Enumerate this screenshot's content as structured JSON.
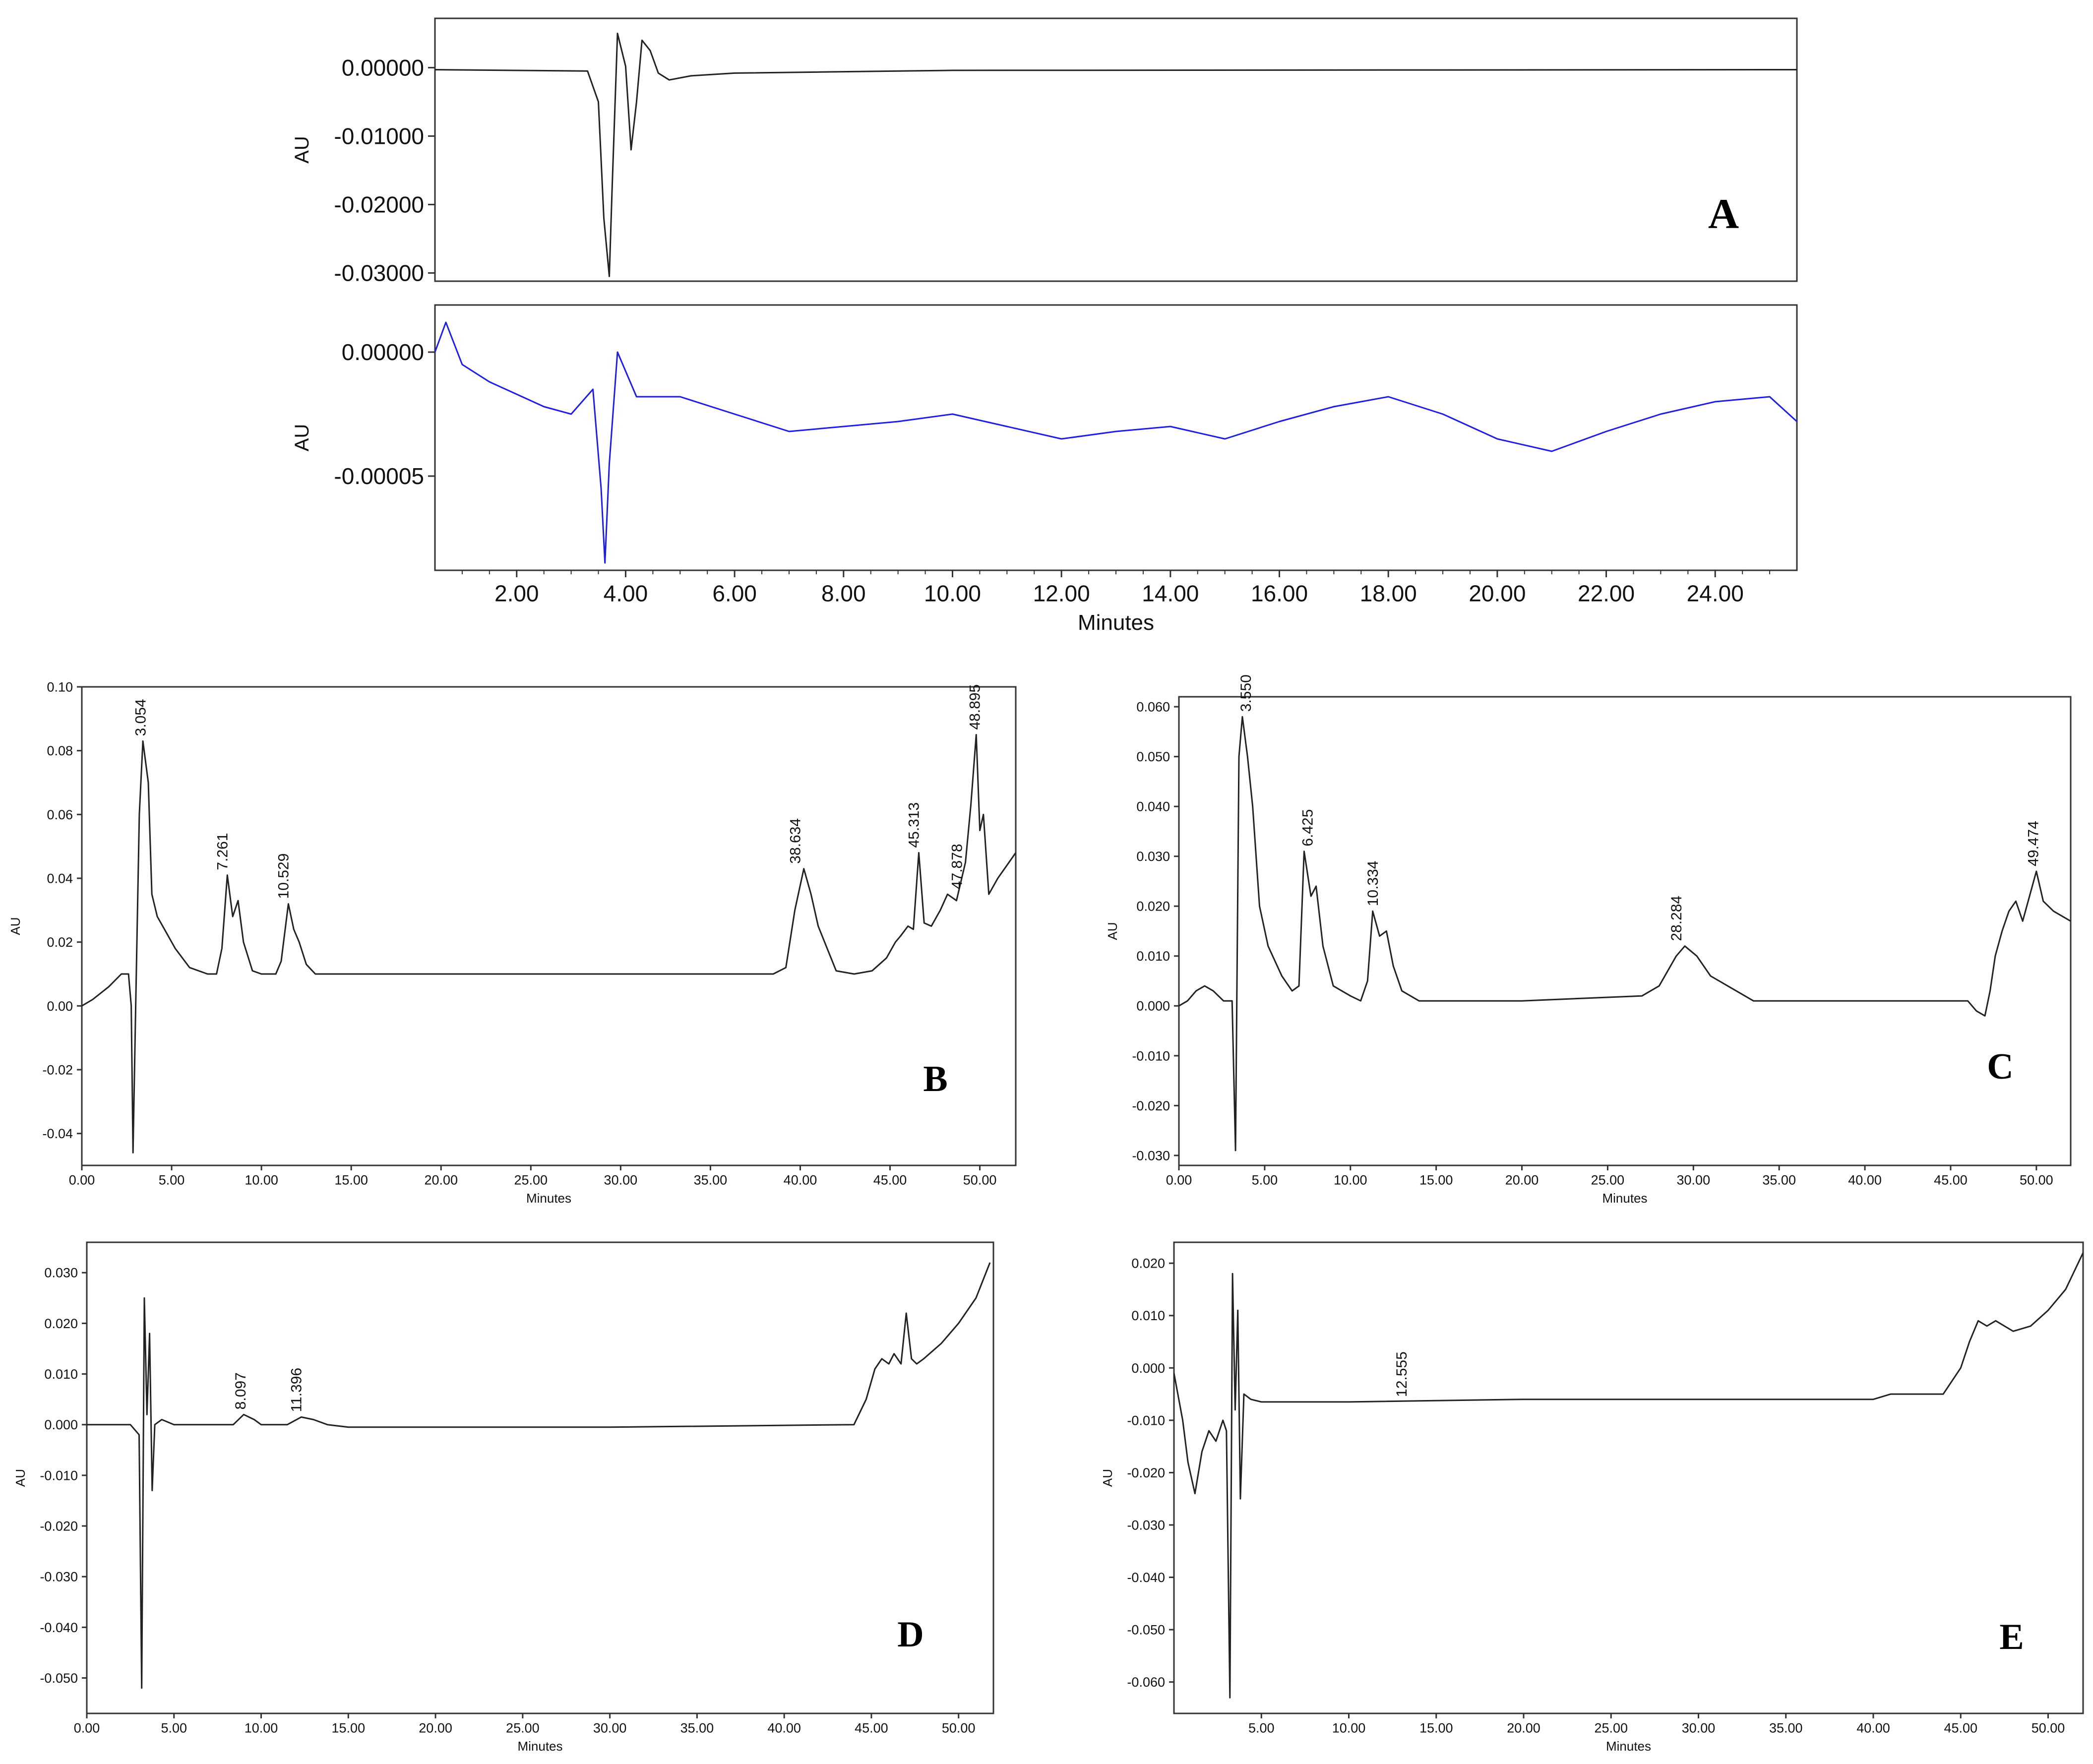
{
  "chart_data": [
    {
      "id": "A_top",
      "type": "line",
      "panel_label": "A",
      "xlabel": "",
      "ylabel": "AU",
      "xlim": [
        0.5,
        25.5
      ],
      "ylim": [
        -0.0312,
        0.0072
      ],
      "x_ticks": [],
      "x_tick_labels": [],
      "y_ticks": [
        0.0,
        -0.01,
        -0.02,
        -0.03
      ],
      "y_tick_labels": [
        "0.00000",
        "-0.01000",
        "-0.02000",
        "-0.03000"
      ],
      "color": "#222222",
      "series": [
        {
          "x": [
            0.5,
            3.3,
            3.5,
            3.6,
            3.7,
            3.75,
            3.85,
            4.0,
            4.1,
            4.2,
            4.3,
            4.45,
            4.6,
            4.8,
            5.2,
            6,
            10,
            25.5
          ],
          "y": [
            -0.0003,
            -0.0005,
            -0.005,
            -0.022,
            -0.0305,
            -0.018,
            0.005,
            0.0002,
            -0.012,
            -0.005,
            0.004,
            0.0025,
            -0.0008,
            -0.0018,
            -0.0012,
            -0.0008,
            -0.0004,
            -0.0003
          ]
        }
      ],
      "peak_labels": []
    },
    {
      "id": "A_bottom",
      "type": "line",
      "panel_label": "",
      "xlabel": "Minutes",
      "ylabel": "AU",
      "xlim": [
        0.5,
        25.5
      ],
      "ylim": [
        -8.8e-05,
        1.9e-05
      ],
      "x_ticks": [
        2,
        4,
        6,
        8,
        10,
        12,
        14,
        16,
        18,
        20,
        22,
        24
      ],
      "x_tick_labels": [
        "2.00",
        "4.00",
        "6.00",
        "8.00",
        "10.00",
        "12.00",
        "14.00",
        "16.00",
        "18.00",
        "20.00",
        "22.00",
        "24.00"
      ],
      "y_ticks": [
        0.0,
        -5e-05
      ],
      "y_tick_labels": [
        "0.00000",
        "-0.00005"
      ],
      "color": "#1f1fe0",
      "series": [
        {
          "x": [
            0.5,
            0.7,
            1,
            1.5,
            2,
            2.5,
            3,
            3.4,
            3.55,
            3.62,
            3.7,
            3.85,
            4.2,
            5,
            6,
            7,
            8,
            9,
            10,
            11,
            12,
            13,
            14,
            15,
            16,
            17,
            18,
            19,
            20,
            21,
            22,
            23,
            24,
            25,
            25.5
          ],
          "y": [
            0,
            1.2e-05,
            -5e-06,
            -1.2e-05,
            -1.7e-05,
            -2.2e-05,
            -2.5e-05,
            -1.5e-05,
            -5.5e-05,
            -8.5e-05,
            -4.5e-05,
            0,
            -1.8e-05,
            -1.8e-05,
            -2.5e-05,
            -3.2e-05,
            -3e-05,
            -2.8e-05,
            -2.5e-05,
            -3e-05,
            -3.5e-05,
            -3.2e-05,
            -3e-05,
            -3.5e-05,
            -2.8e-05,
            -2.2e-05,
            -1.8e-05,
            -2.5e-05,
            -3.5e-05,
            -4e-05,
            -3.2e-05,
            -2.5e-05,
            -2e-05,
            -1.8e-05,
            -2.8e-05
          ]
        }
      ],
      "peak_labels": []
    },
    {
      "id": "B",
      "type": "line",
      "panel_label": "B",
      "xlabel": "Minutes",
      "ylabel": "AU",
      "xlim": [
        0,
        52
      ],
      "ylim": [
        -0.05,
        0.1
      ],
      "x_ticks": [
        0,
        5,
        10,
        15,
        20,
        25,
        30,
        35,
        40,
        45,
        50
      ],
      "x_tick_labels": [
        "0.00",
        "5.00",
        "10.00",
        "15.00",
        "20.00",
        "25.00",
        "30.00",
        "35.00",
        "40.00",
        "45.00",
        "50.00"
      ],
      "y_ticks": [
        0.1,
        0.08,
        0.06,
        0.04,
        0.02,
        0.0,
        -0.02,
        -0.04
      ],
      "y_tick_labels": [
        "0.10",
        "0.08",
        "0.06",
        "0.04",
        "0.02",
        "0.00",
        "-0.02",
        "-0.04"
      ],
      "color": "#222222",
      "series": [
        {
          "x": [
            0,
            0.6,
            1.5,
            2.2,
            2.6,
            2.75,
            2.85,
            3.0,
            3.2,
            3.4,
            3.7,
            3.9,
            4.2,
            4.6,
            5.2,
            6,
            7,
            7.5,
            7.8,
            8.1,
            8.4,
            8.7,
            9,
            9.5,
            10,
            10.8,
            11.1,
            11.5,
            11.8,
            12.1,
            12.5,
            13,
            14,
            20,
            30,
            37,
            38.5,
            39.2,
            39.7,
            40.2,
            40.6,
            41,
            42,
            43,
            44,
            44.8,
            45.3,
            45.6,
            46.0,
            46.3,
            46.6,
            46.9,
            47.3,
            47.8,
            48.2,
            48.7,
            49.2,
            49.5,
            49.8,
            50.0,
            50.2,
            50.5,
            51,
            52
          ],
          "y": [
            0.0,
            0.002,
            0.006,
            0.01,
            0.01,
            0.0,
            -0.046,
            0.0,
            0.06,
            0.083,
            0.07,
            0.035,
            0.028,
            0.024,
            0.018,
            0.012,
            0.01,
            0.01,
            0.018,
            0.041,
            0.028,
            0.033,
            0.02,
            0.011,
            0.01,
            0.01,
            0.014,
            0.032,
            0.024,
            0.02,
            0.013,
            0.01,
            0.01,
            0.01,
            0.01,
            0.01,
            0.01,
            0.012,
            0.03,
            0.043,
            0.035,
            0.025,
            0.011,
            0.01,
            0.011,
            0.015,
            0.02,
            0.022,
            0.025,
            0.024,
            0.048,
            0.026,
            0.025,
            0.03,
            0.035,
            0.033,
            0.045,
            0.063,
            0.085,
            0.055,
            0.06,
            0.035,
            0.04,
            0.048
          ]
        }
      ],
      "peak_labels": [
        {
          "x": 3.054,
          "y": 0.083,
          "text": "3.054",
          "lx": 3.55
        },
        {
          "x": 7.261,
          "y": 0.041,
          "text": "7.261",
          "lx": 8.1
        },
        {
          "x": 10.529,
          "y": 0.032,
          "text": "10.529",
          "lx": 11.5
        },
        {
          "x": 38.634,
          "y": 0.043,
          "text": "38.634",
          "lx": 40.0
        },
        {
          "x": 45.313,
          "y": 0.048,
          "text": "45.313",
          "lx": 46.6
        },
        {
          "x": 47.878,
          "y": 0.035,
          "text": "47.878",
          "lx": 49.0
        },
        {
          "x": 48.895,
          "y": 0.085,
          "text": "48.895",
          "lx": 50.0
        }
      ]
    },
    {
      "id": "C",
      "type": "line",
      "panel_label": "C",
      "xlabel": "Minutes",
      "ylabel": "AU",
      "xlim": [
        0,
        52
      ],
      "ylim": [
        -0.032,
        0.062
      ],
      "x_ticks": [
        0,
        5,
        10,
        15,
        20,
        25,
        30,
        35,
        40,
        45,
        50
      ],
      "x_tick_labels": [
        "0.00",
        "5.00",
        "10.00",
        "15.00",
        "20.00",
        "25.00",
        "30.00",
        "35.00",
        "40.00",
        "45.00",
        "50.00"
      ],
      "y_ticks": [
        0.06,
        0.05,
        0.04,
        0.03,
        0.02,
        0.01,
        0.0,
        -0.01,
        -0.02,
        -0.03
      ],
      "y_tick_labels": [
        "0.060",
        "0.050",
        "0.040",
        "0.030",
        "0.020",
        "0.010",
        "0.000",
        "-0.010",
        "-0.020",
        "-0.030"
      ],
      "color": "#222222",
      "series": [
        {
          "x": [
            0,
            0.5,
            1,
            1.5,
            2,
            2.6,
            3.1,
            3.3,
            3.5,
            3.7,
            4.0,
            4.3,
            4.7,
            5.2,
            6,
            6.6,
            7.0,
            7.3,
            7.7,
            8.0,
            8.4,
            9,
            10,
            10.6,
            11.0,
            11.3,
            11.7,
            12.1,
            12.5,
            13,
            14,
            20,
            27,
            28,
            29,
            29.5,
            30.2,
            31,
            32,
            33.5,
            40,
            46,
            46.5,
            47,
            47.3,
            47.6,
            48,
            48.4,
            48.8,
            49.2,
            49.6,
            50.0,
            50.4,
            51,
            52
          ],
          "y": [
            0.0,
            0.001,
            0.003,
            0.004,
            0.003,
            0.001,
            0.001,
            -0.029,
            0.05,
            0.058,
            0.05,
            0.04,
            0.02,
            0.012,
            0.006,
            0.003,
            0.004,
            0.031,
            0.022,
            0.024,
            0.012,
            0.004,
            0.002,
            0.001,
            0.005,
            0.019,
            0.014,
            0.015,
            0.008,
            0.003,
            0.001,
            0.001,
            0.002,
            0.004,
            0.01,
            0.012,
            0.01,
            0.006,
            0.004,
            0.001,
            0.001,
            0.001,
            -0.001,
            -0.002,
            0.003,
            0.01,
            0.015,
            0.019,
            0.021,
            0.017,
            0.022,
            0.027,
            0.021,
            0.019,
            0.017
          ]
        }
      ],
      "peak_labels": [
        {
          "x": 3.55,
          "y": 0.058,
          "text": "3.550",
          "lx": 4.2
        },
        {
          "x": 6.425,
          "y": 0.031,
          "text": "6.425",
          "lx": 7.8
        },
        {
          "x": 10.334,
          "y": 0.019,
          "text": "10.334",
          "lx": 11.6
        },
        {
          "x": 28.284,
          "y": 0.012,
          "text": "28.284",
          "lx": 29.3
        },
        {
          "x": 49.474,
          "y": 0.027,
          "text": "49.474",
          "lx": 50.1
        }
      ]
    },
    {
      "id": "D",
      "type": "line",
      "panel_label": "D",
      "xlabel": "Minutes",
      "ylabel": "AU",
      "xlim": [
        0,
        52
      ],
      "ylim": [
        -0.057,
        0.036
      ],
      "x_ticks": [
        0,
        5,
        10,
        15,
        20,
        25,
        30,
        35,
        40,
        45,
        50
      ],
      "x_tick_labels": [
        "0.00",
        "5.00",
        "10.00",
        "15.00",
        "20.00",
        "25.00",
        "30.00",
        "35.00",
        "40.00",
        "45.00",
        "50.00"
      ],
      "y_ticks": [
        0.03,
        0.02,
        0.01,
        0.0,
        -0.01,
        -0.02,
        -0.03,
        -0.04,
        -0.05
      ],
      "y_tick_labels": [
        "0.030",
        "0.020",
        "0.010",
        "0.000",
        "-0.010",
        "-0.020",
        "-0.030",
        "-0.040",
        "-0.050"
      ],
      "color": "#222222",
      "series": [
        {
          "x": [
            0,
            2.5,
            3.0,
            3.15,
            3.3,
            3.45,
            3.6,
            3.75,
            3.9,
            4.3,
            5,
            8.4,
            9.0,
            9.6,
            10,
            11.5,
            12.3,
            13.0,
            13.8,
            15,
            30,
            44,
            44.7,
            45.2,
            45.6,
            46.0,
            46.3,
            46.7,
            47.0,
            47.3,
            47.6,
            48,
            49,
            50,
            51,
            51.8
          ],
          "y": [
            0.0,
            0.0,
            -0.002,
            -0.052,
            0.025,
            0.002,
            0.018,
            -0.013,
            0.0,
            0.001,
            0.0,
            0.0,
            0.002,
            0.001,
            0.0,
            0.0,
            0.0015,
            0.001,
            0.0,
            -0.0005,
            -0.0005,
            0.0,
            0.005,
            0.011,
            0.013,
            0.012,
            0.014,
            0.012,
            0.022,
            0.013,
            0.012,
            0.013,
            0.016,
            0.02,
            0.025,
            0.032
          ]
        }
      ],
      "peak_labels": [
        {
          "x": 8.097,
          "y": 0.002,
          "text": "8.097",
          "lx": 9.1
        },
        {
          "x": 11.396,
          "y": 0.0015,
          "text": "11.396",
          "lx": 12.3
        }
      ]
    },
    {
      "id": "E",
      "type": "line",
      "panel_label": "E",
      "xlabel": "Minutes",
      "ylabel": "AU",
      "xlim": [
        0,
        52
      ],
      "ylim": [
        -0.066,
        0.024
      ],
      "x_ticks": [
        5,
        10,
        15,
        20,
        25,
        30,
        35,
        40,
        45,
        50
      ],
      "x_tick_labels": [
        "5.00",
        "10.00",
        "15.00",
        "20.00",
        "25.00",
        "30.00",
        "35.00",
        "40.00",
        "45.00",
        "50.00"
      ],
      "y_ticks": [
        0.02,
        0.01,
        0.0,
        -0.01,
        -0.02,
        -0.03,
        -0.04,
        -0.05,
        -0.06
      ],
      "y_tick_labels": [
        "0.020",
        "0.010",
        "0.000",
        "-0.010",
        "-0.020",
        "-0.030",
        "-0.040",
        "-0.050",
        "-0.060"
      ],
      "color": "#222222",
      "series": [
        {
          "x": [
            0,
            0.5,
            0.8,
            1.2,
            1.6,
            2.0,
            2.4,
            2.8,
            3.0,
            3.2,
            3.35,
            3.5,
            3.65,
            3.8,
            4.0,
            4.4,
            5,
            10,
            20,
            30,
            40,
            41,
            42,
            44,
            45,
            45.5,
            46,
            46.5,
            47,
            48,
            49,
            50,
            51,
            52
          ],
          "y": [
            -0.001,
            -0.01,
            -0.018,
            -0.024,
            -0.016,
            -0.012,
            -0.014,
            -0.01,
            -0.012,
            -0.063,
            0.018,
            -0.008,
            0.011,
            -0.025,
            -0.005,
            -0.006,
            -0.0065,
            -0.0065,
            -0.006,
            -0.006,
            -0.006,
            -0.005,
            -0.005,
            -0.005,
            0.0,
            0.005,
            0.009,
            0.008,
            0.009,
            0.007,
            0.008,
            0.011,
            0.015,
            0.022
          ]
        }
      ],
      "peak_labels": [
        {
          "x": 12.555,
          "y": -0.0065,
          "text": "12.555",
          "lx": 13.3
        }
      ]
    }
  ]
}
